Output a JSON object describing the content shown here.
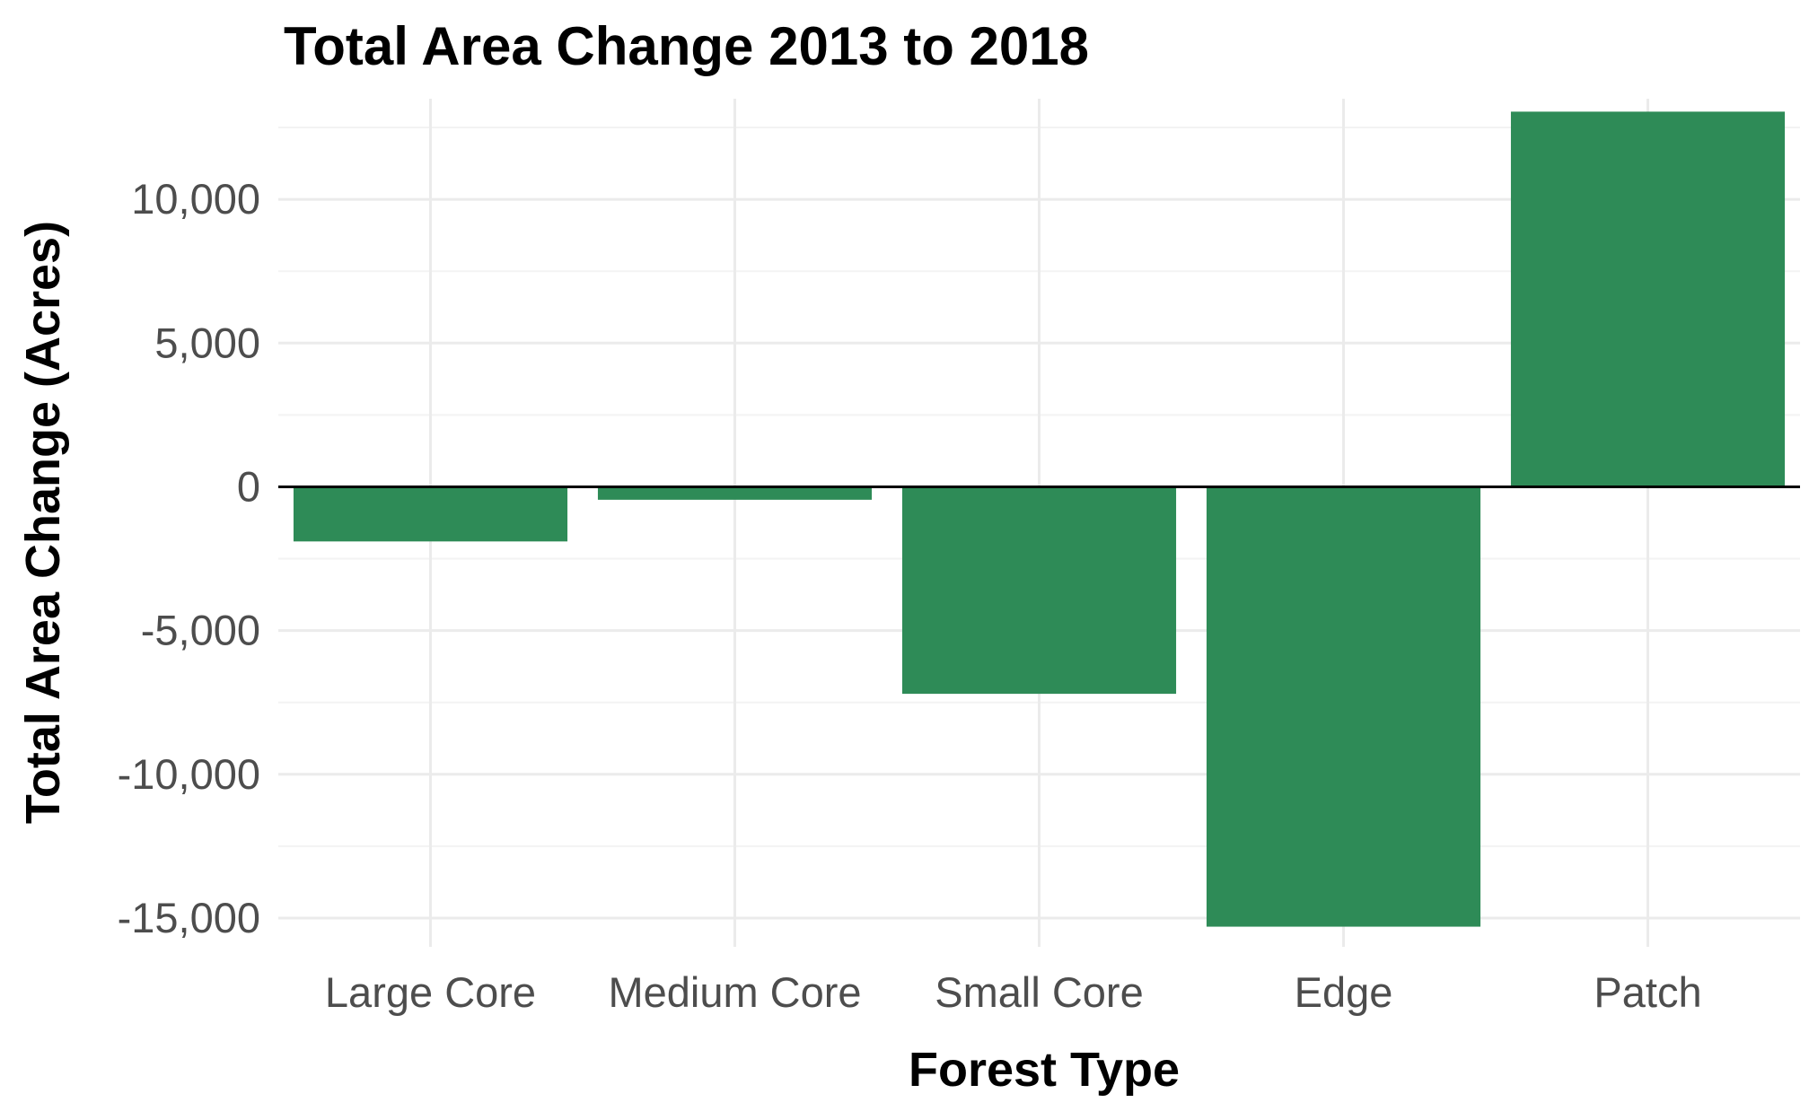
{
  "chart_data": {
    "type": "bar",
    "title": "Total Area Change 2013 to 2018",
    "xlabel": "Forest Type",
    "ylabel": "Total Area Change (Acres)",
    "categories": [
      "Large Core",
      "Medium Core",
      "Small Core",
      "Edge",
      "Patch"
    ],
    "values": [
      -1900,
      -450,
      -7200,
      -15300,
      13050
    ],
    "ylim": [
      -16000,
      13500
    ],
    "y_ticks": [
      10000,
      5000,
      0,
      -5000,
      -10000,
      -15000
    ],
    "y_tick_labels": [
      "10,000",
      "5,000",
      "0",
      "-5,000",
      "-10,000",
      "-15,000"
    ],
    "grid": true,
    "bar_color": "#2e8b57",
    "zero_line": true
  }
}
